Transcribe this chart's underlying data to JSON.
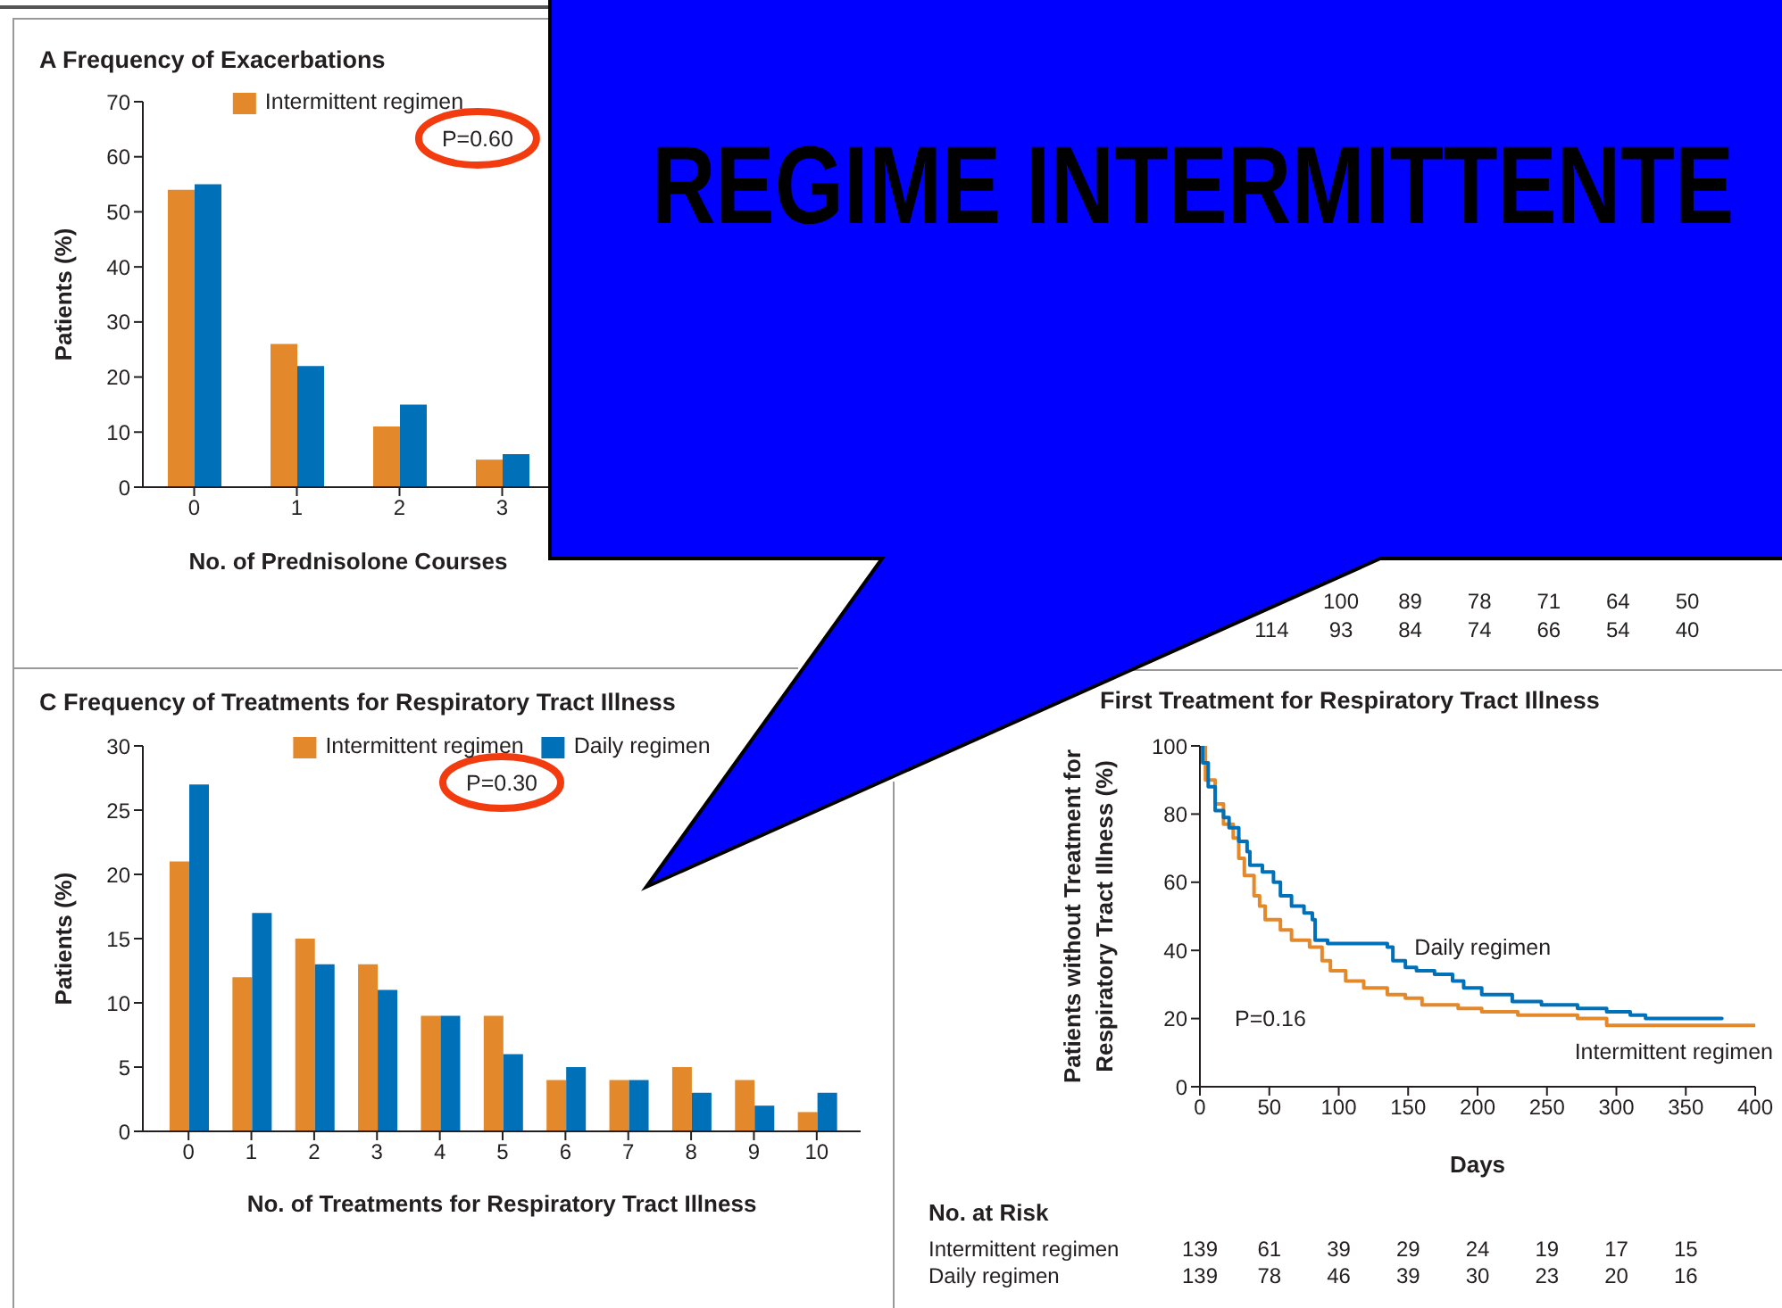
{
  "chart_data": [
    {
      "type": "bar",
      "title": "A Frequency of Exacerbations",
      "xlabel": "No. of Prednisolone Courses",
      "ylabel": "Patients (%)",
      "categories": [
        "0",
        "1",
        "2",
        "3"
      ],
      "series": [
        {
          "name": "Intermittent regimen",
          "color": "#e3892b",
          "values": [
            54,
            26,
            11,
            5
          ]
        },
        {
          "color": "#0071b8",
          "values": [
            55,
            22,
            15,
            6
          ]
        }
      ],
      "ylim": [
        0,
        70
      ],
      "yticks": [
        0,
        10,
        20,
        30,
        40,
        50,
        60,
        70
      ],
      "legend": "top",
      "annotations": [
        "P=0.60"
      ]
    },
    {
      "type": "other",
      "title": "REGIME INTERMITTENTE"
    },
    {
      "type": "other",
      "annotations": [
        "100 89 78 71 64 50",
        "114 93 84 74 66 54 40"
      ]
    },
    {
      "type": "bar",
      "title": "C Frequency of Treatments for Respiratory Tract Illness",
      "xlabel": "No. of Treatments for Respiratory Tract Illness",
      "ylabel": "Patients (%)",
      "categories": [
        "0",
        "1",
        "2",
        "3",
        "4",
        "5",
        "6",
        "7",
        "8",
        "9",
        "10"
      ],
      "series": [
        {
          "name": "Intermittent regimen",
          "color": "#e3892b",
          "values": [
            21,
            12,
            15,
            13,
            9,
            9,
            4,
            4,
            5,
            4,
            1.5
          ]
        },
        {
          "name": "Daily regimen",
          "color": "#0071b8",
          "values": [
            27,
            17,
            13,
            11,
            9,
            6,
            5,
            4,
            3,
            2,
            3
          ]
        }
      ],
      "ylim": [
        0,
        30
      ],
      "yticks": [
        0,
        5,
        10,
        15,
        20,
        25,
        30
      ],
      "legend": "top",
      "annotations": [
        "P=0.30"
      ]
    },
    {
      "type": "step",
      "title": "First Treatment for Respiratory Tract Illness",
      "xlabel": "Days",
      "ylabel": "Patients without Treatment for Respiratory Tract Illness (%)",
      "series": [
        {
          "name": "Intermittent regimen",
          "color": "#e3892b",
          "x": [
            0,
            4,
            11,
            17,
            24,
            28,
            32,
            39,
            43,
            47,
            58,
            66,
            79,
            88,
            94,
            105,
            118,
            135,
            148,
            160,
            186,
            203,
            229,
            272,
            293,
            400
          ],
          "values": [
            100,
            90,
            83,
            77,
            73,
            67,
            62,
            56,
            53,
            49,
            46,
            43,
            41,
            37,
            34,
            31,
            29,
            27,
            26,
            24,
            23,
            22,
            21,
            20,
            18,
            18
          ]
        },
        {
          "name": "Daily regimen",
          "color": "#0071b8",
          "x": [
            0,
            2,
            6,
            11,
            17,
            21,
            28,
            34,
            36,
            45,
            53,
            58,
            66,
            75,
            81,
            83,
            92,
            135,
            139,
            148,
            156,
            169,
            182,
            190,
            203,
            225,
            246,
            272,
            293,
            310,
            321,
            376
          ],
          "values": [
            100,
            95,
            88,
            81,
            79,
            76,
            72,
            69,
            65,
            63,
            60,
            56,
            53,
            51,
            49,
            43,
            42,
            41,
            37,
            35,
            34,
            33,
            31,
            29,
            27,
            25,
            24,
            23,
            22,
            21,
            20,
            20
          ]
        }
      ],
      "xlim": [
        0,
        400
      ],
      "xticks": [
        0,
        50,
        100,
        150,
        200,
        250,
        300,
        350,
        400
      ],
      "ylim": [
        0,
        100
      ],
      "yticks": [
        0,
        20,
        40,
        60,
        80,
        100
      ],
      "annotations": [
        "P=0.16",
        "No. at Risk",
        "Intermittent regimen",
        "139 61 39 29 24 19 17 15",
        "Daily regimen",
        "139 78 46 39 30 23 20 16"
      ]
    }
  ]
}
